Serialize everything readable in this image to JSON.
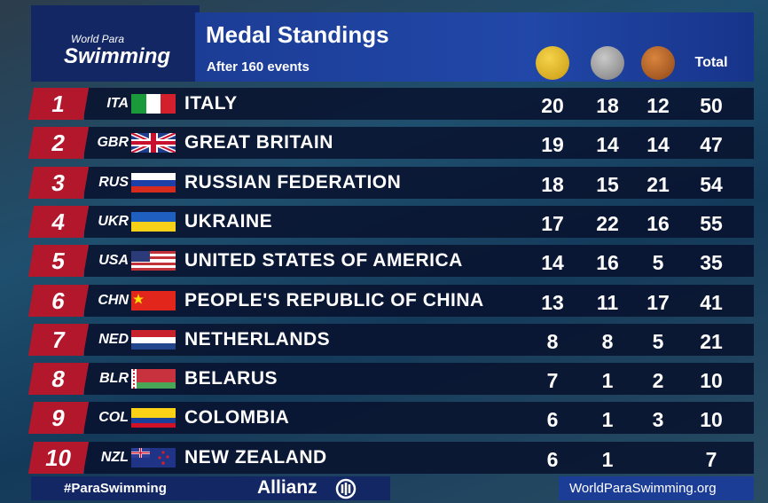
{
  "header": {
    "logo_line1": "World Para",
    "logo_line2": "Swimming",
    "title": "Medal Standings",
    "subtitle": "After 160 events",
    "total_label": "Total"
  },
  "standings": {
    "rows": [
      {
        "rank": 1,
        "code": "ITA",
        "country": "ITALY",
        "gold": 20,
        "silver": 18,
        "bronze": 12,
        "total": 50
      },
      {
        "rank": 2,
        "code": "GBR",
        "country": "GREAT BRITAIN",
        "gold": 19,
        "silver": 14,
        "bronze": 14,
        "total": 47
      },
      {
        "rank": 3,
        "code": "RUS",
        "country": "RUSSIAN FEDERATION",
        "gold": 18,
        "silver": 15,
        "bronze": 21,
        "total": 54
      },
      {
        "rank": 4,
        "code": "UKR",
        "country": "UKRAINE",
        "gold": 17,
        "silver": 22,
        "bronze": 16,
        "total": 55
      },
      {
        "rank": 5,
        "code": "USA",
        "country": "UNITED STATES OF AMERICA",
        "gold": 14,
        "silver": 16,
        "bronze": 5,
        "total": 35
      },
      {
        "rank": 6,
        "code": "CHN",
        "country": "PEOPLE'S REPUBLIC OF CHINA",
        "gold": 13,
        "silver": 11,
        "bronze": 17,
        "total": 41
      },
      {
        "rank": 7,
        "code": "NED",
        "country": "NETHERLANDS",
        "gold": 8,
        "silver": 8,
        "bronze": 5,
        "total": 21
      },
      {
        "rank": 8,
        "code": "BLR",
        "country": "BELARUS",
        "gold": 7,
        "silver": 1,
        "bronze": 2,
        "total": 10
      },
      {
        "rank": 9,
        "code": "COL",
        "country": "COLOMBIA",
        "gold": 6,
        "silver": 1,
        "bronze": 3,
        "total": 10
      },
      {
        "rank": 10,
        "code": "NZL",
        "country": "NEW ZEALAND",
        "gold": 6,
        "silver": 1,
        "bronze": null,
        "total": 7
      }
    ]
  },
  "footer": {
    "hashtag": "#ParaSwimming",
    "sponsor": "Allianz",
    "website": "WorldParaSwimming.org"
  }
}
